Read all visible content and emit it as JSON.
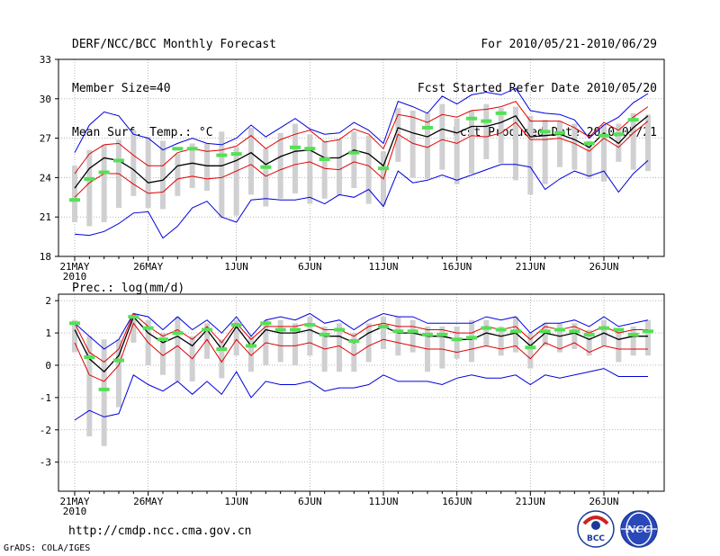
{
  "header": {
    "title": "DERF/NCC/BCC Monthly Forecast",
    "member_size": "Member Size=40",
    "variable": "Mean Surf. Temp.: °C",
    "period": "For 2010/05/21-2010/06/29",
    "started": "Fcst Started Refer Date 2010/05/20",
    "produced": "Fcst Produced Date 2010/05/21"
  },
  "footer": {
    "url": "http://cmdp.ncc.cma.gov.cn",
    "credit": "GrADS: COLA/IGES",
    "logo_left": "BCC",
    "logo_right": "NCC"
  },
  "colors": {
    "box": "#d0d0d2",
    "obs": "#55e055",
    "mean": "#000000",
    "spread": "#e00000",
    "extreme": "#0000dd",
    "grid": "#888888"
  },
  "chart_data": [
    {
      "type": "line",
      "title": "Mean Surf. Temp.: °C",
      "ylim": [
        18,
        33
      ],
      "yticks": [
        18,
        21,
        24,
        27,
        30,
        33
      ],
      "xlim": [
        0,
        39
      ],
      "xticks": [
        {
          "day": 0,
          "label": "21MAY",
          "sub": "2010"
        },
        {
          "day": 5,
          "label": "26MAY"
        },
        {
          "day": 11,
          "label": "1JUN"
        },
        {
          "day": 16,
          "label": "6JUN"
        },
        {
          "day": 21,
          "label": "11JUN"
        },
        {
          "day": 26,
          "label": "16JUN"
        },
        {
          "day": 31,
          "label": "21JUN"
        },
        {
          "day": 36,
          "label": "26JUN"
        }
      ],
      "mean": [
        23.2,
        24.7,
        25.5,
        25.3,
        24.6,
        23.6,
        23.8,
        24.9,
        25.1,
        24.9,
        24.9,
        25.3,
        25.9,
        25.0,
        25.6,
        26.0,
        26.1,
        25.5,
        25.5,
        26.1,
        25.8,
        24.9,
        27.8,
        27.4,
        27.1,
        27.7,
        27.4,
        27.9,
        27.9,
        28.2,
        28.7,
        27.1,
        27.2,
        27.3,
        26.9,
        26.3,
        27.4,
        26.6,
        27.8,
        28.7
      ],
      "upper": [
        24.3,
        25.8,
        26.5,
        26.6,
        25.7,
        24.9,
        24.9,
        25.9,
        26.2,
        26.0,
        26.1,
        26.4,
        27.2,
        26.2,
        26.9,
        27.3,
        27.6,
        26.7,
        26.9,
        27.7,
        27.3,
        26.2,
        28.8,
        28.6,
        28.2,
        28.8,
        28.6,
        29.1,
        29.2,
        29.4,
        29.8,
        28.3,
        28.3,
        28.3,
        27.8,
        27.1,
        28.2,
        27.6,
        28.6,
        29.4
      ],
      "lower": [
        22.5,
        23.6,
        24.3,
        24.3,
        23.5,
        22.8,
        22.9,
        23.9,
        24.1,
        23.9,
        24.0,
        24.5,
        25.0,
        24.1,
        24.6,
        25.0,
        25.2,
        24.7,
        24.6,
        25.2,
        24.9,
        23.9,
        27.3,
        26.6,
        26.3,
        26.9,
        26.6,
        27.2,
        27.1,
        27.4,
        28.2,
        26.9,
        26.9,
        27.0,
        26.6,
        26.0,
        27.0,
        26.3,
        27.4,
        28.3
      ],
      "max": [
        25.9,
        28.0,
        29.0,
        28.7,
        27.3,
        27.0,
        26.1,
        26.6,
        27.0,
        26.6,
        26.5,
        27.0,
        28.0,
        27.1,
        27.8,
        28.5,
        27.7,
        27.3,
        27.4,
        28.2,
        27.6,
        26.6,
        29.8,
        29.4,
        28.9,
        30.2,
        29.6,
        30.3,
        30.5,
        30.3,
        30.8,
        29.1,
        28.9,
        28.8,
        28.4,
        27.0,
        28.0,
        28.6,
        29.7,
        30.4
      ],
      "min": [
        19.7,
        19.6,
        19.9,
        20.5,
        21.3,
        21.4,
        19.4,
        20.3,
        21.7,
        22.2,
        21.0,
        20.6,
        22.3,
        22.4,
        22.3,
        22.3,
        22.5,
        22.0,
        22.7,
        22.5,
        23.1,
        21.8,
        24.5,
        23.6,
        23.8,
        24.2,
        23.8,
        24.2,
        24.6,
        25.0,
        25.0,
        24.8,
        23.1,
        23.9,
        24.5,
        24.1,
        24.5,
        22.9,
        24.3,
        25.3
      ],
      "box_top": [
        24.9,
        26.1,
        26.5,
        26.9,
        27.6,
        27.1,
        26.8,
        25.8,
        26.6,
        26.6,
        27.5,
        26.3,
        27.8,
        26.2,
        27.4,
        28.1,
        27.3,
        26.8,
        26.9,
        27.5,
        27.2,
        26.0,
        29.3,
        29.1,
        28.9,
        29.6,
        28.5,
        29.1,
        29.6,
        29.3,
        29.4,
        28.7,
        28.4,
        28.3,
        28.1,
        26.8,
        28.0,
        28.1,
        28.9,
        28.8
      ],
      "box_bottom": [
        20.6,
        20.3,
        20.6,
        21.7,
        22.6,
        21.7,
        21.6,
        22.6,
        23.2,
        23.0,
        20.9,
        21.1,
        22.7,
        21.8,
        22.4,
        22.8,
        22.0,
        22.4,
        22.6,
        23.2,
        22.0,
        21.9,
        25.2,
        24.0,
        23.9,
        24.6,
        23.5,
        24.3,
        25.4,
        25.1,
        23.8,
        22.7,
        23.5,
        24.8,
        24.6,
        23.9,
        23.7,
        25.2,
        24.6,
        24.5
      ],
      "obs": [
        22.3,
        23.9,
        24.4,
        25.3,
        null,
        null,
        null,
        26.2,
        26.2,
        null,
        25.7,
        25.8,
        null,
        24.8,
        null,
        26.3,
        26.2,
        25.4,
        null,
        25.9,
        null,
        24.7,
        null,
        null,
        27.8,
        null,
        null,
        28.5,
        28.3,
        28.9,
        null,
        null,
        27.5,
        27.4,
        null,
        26.6,
        27.2,
        27.3,
        28.4,
        null
      ]
    },
    {
      "type": "line",
      "title": "Prec.: log(mm/d)",
      "ylim": [
        -3.9,
        2.2
      ],
      "yticks": [
        -3,
        -2,
        -1,
        0,
        1,
        2
      ],
      "xlim": [
        0,
        39
      ],
      "xticks": [
        {
          "day": 0,
          "label": "21MAY",
          "sub": "2010"
        },
        {
          "day": 5,
          "label": "26MAY"
        },
        {
          "day": 11,
          "label": "1JUN"
        },
        {
          "day": 16,
          "label": "6JUN"
        },
        {
          "day": 21,
          "label": "11JUN"
        },
        {
          "day": 26,
          "label": "16JUN"
        },
        {
          "day": 31,
          "label": "21JUN"
        },
        {
          "day": 36,
          "label": "26JUN"
        }
      ],
      "mean": [
        1.1,
        0.2,
        -0.2,
        0.3,
        1.5,
        1.0,
        0.7,
        0.9,
        0.6,
        1.1,
        0.5,
        1.2,
        0.6,
        1.1,
        1.0,
        1.0,
        1.1,
        0.9,
        0.9,
        0.7,
        1.0,
        1.2,
        1.0,
        1.0,
        0.9,
        0.9,
        0.8,
        0.8,
        1.0,
        0.9,
        1.0,
        0.6,
        1.0,
        0.9,
        1.0,
        0.8,
        1.0,
        0.8,
        0.9,
        0.9
      ],
      "upper": [
        1.3,
        0.4,
        0.1,
        0.5,
        1.6,
        1.2,
        0.9,
        1.1,
        0.8,
        1.2,
        0.7,
        1.3,
        0.8,
        1.2,
        1.2,
        1.2,
        1.3,
        1.1,
        1.1,
        0.9,
        1.2,
        1.3,
        1.2,
        1.2,
        1.1,
        1.1,
        1.0,
        1.0,
        1.2,
        1.1,
        1.2,
        0.8,
        1.2,
        1.1,
        1.2,
        1.0,
        1.2,
        1.0,
        1.1,
        1.1
      ],
      "lower": [
        0.7,
        -0.3,
        -0.5,
        0.0,
        1.3,
        0.7,
        0.3,
        0.6,
        0.2,
        0.8,
        0.1,
        0.8,
        0.3,
        0.7,
        0.6,
        0.6,
        0.7,
        0.5,
        0.6,
        0.3,
        0.6,
        0.8,
        0.7,
        0.6,
        0.5,
        0.5,
        0.4,
        0.5,
        0.6,
        0.5,
        0.6,
        0.2,
        0.7,
        0.5,
        0.7,
        0.4,
        0.6,
        0.5,
        0.5,
        0.5
      ],
      "max": [
        1.3,
        0.9,
        0.5,
        0.8,
        1.6,
        1.5,
        1.1,
        1.5,
        1.1,
        1.4,
        1.0,
        1.5,
        0.9,
        1.4,
        1.5,
        1.4,
        1.6,
        1.3,
        1.4,
        1.1,
        1.4,
        1.6,
        1.5,
        1.5,
        1.3,
        1.3,
        1.3,
        1.3,
        1.5,
        1.4,
        1.5,
        1.0,
        1.3,
        1.3,
        1.4,
        1.2,
        1.5,
        1.2,
        1.3,
        1.4
      ],
      "min": [
        -1.7,
        -1.4,
        -1.6,
        -1.5,
        -0.3,
        -0.6,
        -0.8,
        -0.5,
        -0.9,
        -0.5,
        -0.9,
        -0.2,
        -1.0,
        -0.5,
        -0.6,
        -0.6,
        -0.5,
        -0.8,
        -0.7,
        -0.7,
        -0.6,
        -0.3,
        -0.5,
        -0.5,
        -0.5,
        -0.6,
        -0.4,
        -0.3,
        -0.4,
        -0.4,
        -0.3,
        -0.6,
        -0.3,
        -0.4,
        -0.3,
        -0.2,
        -0.1,
        -0.35,
        -0.35,
        -0.35
      ],
      "box_top": [
        1.4,
        0.9,
        0.8,
        0.8,
        1.6,
        1.4,
        1.0,
        1.5,
        0.9,
        1.3,
        0.8,
        1.4,
        0.9,
        1.4,
        1.4,
        1.3,
        1.5,
        1.2,
        1.3,
        1.0,
        1.3,
        1.5,
        1.5,
        1.4,
        1.2,
        1.2,
        1.2,
        1.4,
        1.4,
        1.2,
        1.5,
        1.0,
        1.3,
        1.3,
        1.3,
        1.1,
        1.4,
        1.1,
        1.2,
        1.4
      ],
      "box_bottom": [
        0.4,
        -2.2,
        -2.5,
        -1.3,
        0.7,
        0.0,
        -0.3,
        -0.5,
        -0.5,
        0.2,
        -0.4,
        0.3,
        -0.2,
        0.0,
        0.1,
        0.0,
        0.3,
        -0.2,
        -0.2,
        -0.2,
        0.1,
        0.5,
        0.3,
        0.4,
        -0.2,
        -0.1,
        0.2,
        0.1,
        0.6,
        0.3,
        0.4,
        -0.1,
        0.6,
        0.4,
        0.5,
        0.3,
        0.6,
        0.1,
        0.3,
        0.3
      ],
      "obs": [
        1.3,
        0.25,
        -0.75,
        0.15,
        1.5,
        1.15,
        0.8,
        1.0,
        null,
        1.1,
        0.5,
        1.25,
        0.6,
        1.3,
        1.1,
        1.1,
        1.25,
        0.95,
        1.1,
        0.75,
        null,
        1.2,
        1.05,
        1.05,
        0.95,
        0.95,
        0.8,
        0.85,
        1.15,
        1.1,
        1.05,
        0.55,
        1.05,
        1.1,
        1.05,
        0.95,
        1.15,
        1.1,
        0.95,
        1.05
      ]
    }
  ]
}
